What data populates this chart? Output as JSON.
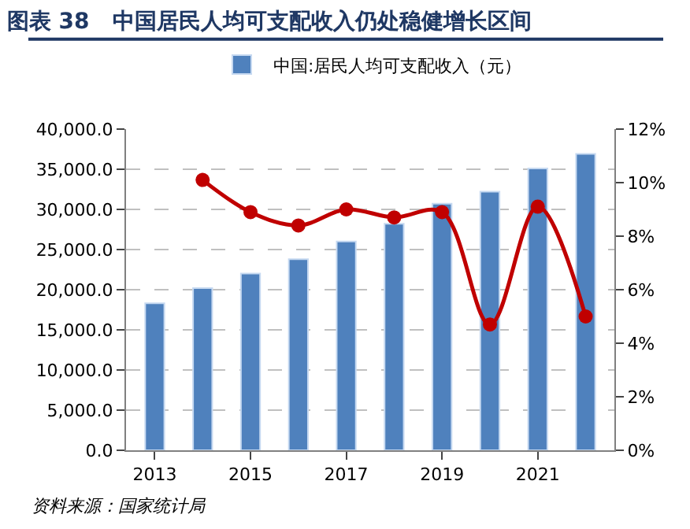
{
  "chart_data": {
    "type": "bar",
    "title": "图表 38   中国居民人均可支配收入仍处稳健增长区间",
    "categories": [
      "2013",
      null,
      "2015",
      null,
      "2017",
      null,
      "2019",
      null,
      "2021",
      null
    ],
    "series": [
      {
        "name": "中国:居民人均可支配收入（元）",
        "color": "#4f81bd",
        "values": [
          18300,
          20200,
          22000,
          23800,
          26000,
          28200,
          30700,
          32200,
          35100,
          36900
        ]
      },
      {
        "type": "line",
        "axis": "y2",
        "color": "#c00000",
        "marker": "circle",
        "values": [
          null,
          10.1,
          8.9,
          8.4,
          9.0,
          8.7,
          8.9,
          4.7,
          9.1,
          5.0
        ]
      }
    ],
    "ylim": [
      0,
      40000
    ],
    "yticks": [
      {
        "value": 0,
        "label": "0.0"
      },
      {
        "value": 5000,
        "label": "5,000.0"
      },
      {
        "value": 10000,
        "label": "10,000.0"
      },
      {
        "value": 15000,
        "label": "15,000.0"
      },
      {
        "value": 20000,
        "label": "20,000.0"
      },
      {
        "value": 25000,
        "label": "25,000.0"
      },
      {
        "value": 30000,
        "label": "30,000.0"
      },
      {
        "value": 35000,
        "label": "35,000.0"
      },
      {
        "value": 40000,
        "label": "40,000.0"
      }
    ],
    "y2lim": [
      0,
      12
    ],
    "y2ticks": [
      {
        "value": 0,
        "label": "0%"
      },
      {
        "value": 2,
        "label": "2%"
      },
      {
        "value": 4,
        "label": "4%"
      },
      {
        "value": 6,
        "label": "6%"
      },
      {
        "value": 8,
        "label": "8%"
      },
      {
        "value": 10,
        "label": "10%"
      },
      {
        "value": 12,
        "label": "12%"
      }
    ],
    "grid": "y",
    "legend": "top",
    "annotations": [
      "资料来源：国家统计局"
    ]
  }
}
